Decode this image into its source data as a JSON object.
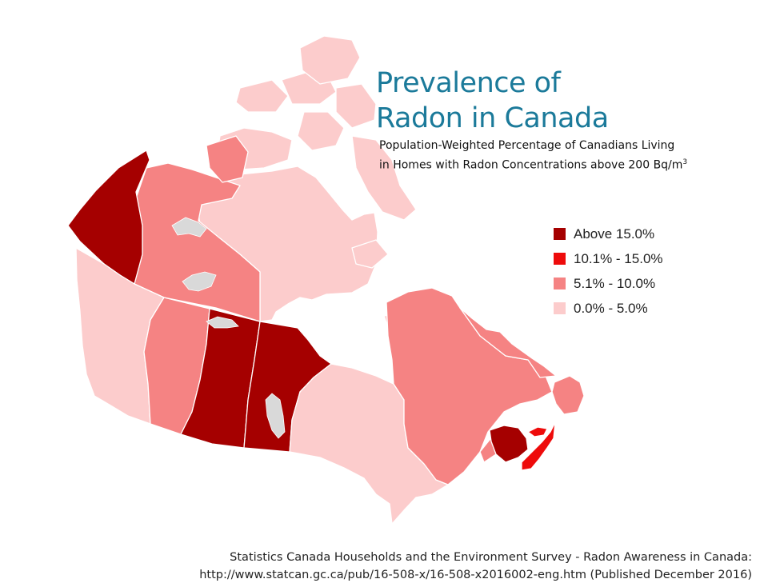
{
  "title": {
    "line1": "Prevalence of",
    "line2": "Radon in Canada"
  },
  "subtitle": {
    "line1": "Population-Weighted Percentage of Canadians Living",
    "line2_main": "in Homes with Radon Concentrations above 200 Bq/m",
    "line2_sup": "3"
  },
  "legend": {
    "items": [
      {
        "label": "Above 15.0%",
        "color": "#a50000"
      },
      {
        "label": "10.1% - 15.0%",
        "color": "#ee0b0b"
      },
      {
        "label": "5.1% - 10.0%",
        "color": "#f58383"
      },
      {
        "label": "0.0% - 5.0%",
        "color": "#fccccc"
      }
    ]
  },
  "regions": [
    {
      "name": "Yukon",
      "category": "Above 15.0%",
      "color": "#a50000"
    },
    {
      "name": "Northwest Territories",
      "category": "5.1% - 10.0%",
      "color": "#f58383"
    },
    {
      "name": "Nunavut",
      "category": "0.0% - 5.0%",
      "color": "#fccccc"
    },
    {
      "name": "British Columbia",
      "category": "0.0% - 5.0%",
      "color": "#fccccc"
    },
    {
      "name": "Alberta",
      "category": "5.1% - 10.0%",
      "color": "#f58383"
    },
    {
      "name": "Saskatchewan",
      "category": "Above 15.0%",
      "color": "#a50000"
    },
    {
      "name": "Manitoba",
      "category": "Above 15.0%",
      "color": "#a50000"
    },
    {
      "name": "Ontario",
      "category": "0.0% - 5.0%",
      "color": "#fccccc"
    },
    {
      "name": "Quebec",
      "category": "5.1% - 10.0%",
      "color": "#f58383"
    },
    {
      "name": "Newfoundland and Labrador",
      "category": "5.1% - 10.0%",
      "color": "#f58383"
    },
    {
      "name": "New Brunswick",
      "category": "Above 15.0%",
      "color": "#a50000"
    },
    {
      "name": "Nova Scotia",
      "category": "10.1% - 15.0%",
      "color": "#ee0b0b"
    },
    {
      "name": "Prince Edward Island",
      "category": "10.1% - 15.0%",
      "color": "#ee0b0b"
    }
  ],
  "lake_color": "#d9d9d9",
  "source": {
    "line1": "Statistics Canada Households and the Environment Survey - Radon Awareness in Canada:",
    "line2": "http://www.statcan.gc.ca/pub/16-508-x/16-508-x2016002-eng.htm (Published December 2016)"
  }
}
